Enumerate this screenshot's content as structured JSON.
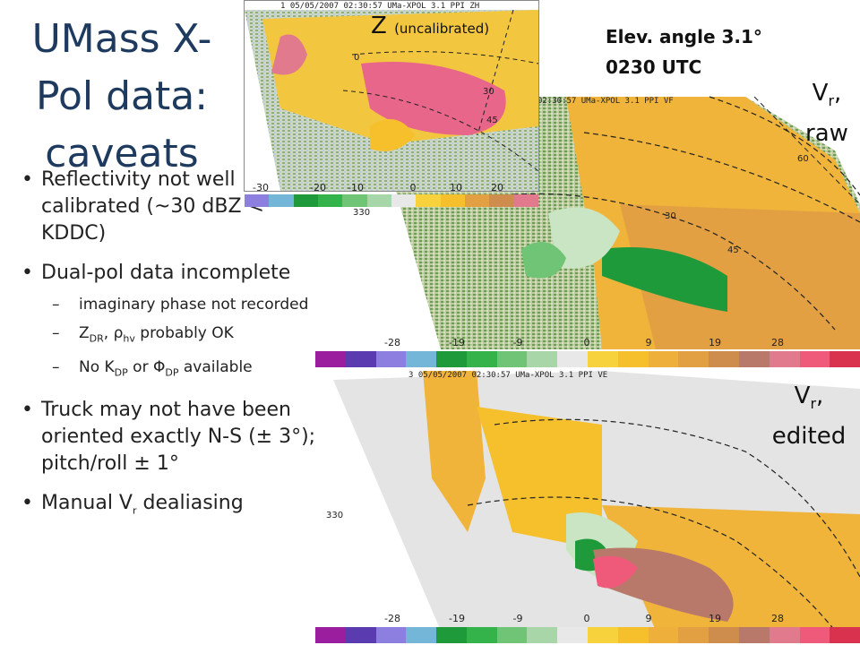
{
  "title": "UMass X-Pol data: caveats",
  "bullets": [
    {
      "text": "Reflectivity not well calibrated (~30 dBZ < KDDC)"
    },
    {
      "text": "Dual-pol data incomplete",
      "sub": [
        {
          "pre": "imaginary phase not recorded"
        },
        {
          "pre": "Z",
          "s1": "DR",
          "mid": ", ρ",
          "s2": "hv",
          "post": " probably OK"
        },
        {
          "pre": "No K",
          "s1": "DP",
          "mid": " or Φ",
          "s2": "DP",
          "post": " available"
        }
      ]
    },
    {
      "text": "Truck may not have been oriented exactly N-S (± 3°); pitch/roll ± 1°"
    },
    {
      "pre": "Manual V",
      "s1": "r",
      "post": " dealiasing"
    }
  ],
  "annotation": {
    "line1": "Elev. angle 3.1°",
    "line2": "0230 UTC"
  },
  "labels": {
    "z_main": "Z",
    "z_note": "(uncalibrated)",
    "vr": "V",
    "vr_sub": "r",
    "raw": "raw",
    "edited": "edited"
  },
  "panels": {
    "z": {
      "header": "1 05/05/2007 02:30:57 UMa-XPOL 3.1 PPI ZH",
      "ticks": [
        "-30",
        "-20",
        "-10",
        "0",
        "10",
        "20"
      ],
      "rings": [
        "0",
        "30",
        "45"
      ]
    },
    "raw": {
      "header": "02:30:57 UMa-XPOL 3.1 PPI VF",
      "ticks": [
        "-28",
        "-19",
        "-9",
        "0",
        "9",
        "19",
        "28"
      ],
      "rings": [
        "330",
        "30",
        "45",
        "60"
      ]
    },
    "edited": {
      "header": "3 05/05/2007 02:30:57 UMa-XPOL 3.1 PPI VE",
      "ticks": [
        "-28",
        "-19",
        "-9",
        "0",
        "9",
        "19",
        "28"
      ],
      "rings": [
        "330"
      ]
    }
  },
  "colors": {
    "velocity_scale": [
      "#9b1e9e",
      "#5b3bb0",
      "#8c7fe0",
      "#74b6d8",
      "#1f9a3a",
      "#33b34a",
      "#6fc475",
      "#a8d6a8",
      "#e8e8e8",
      "#f7d23c",
      "#f5c02c",
      "#eeb03a",
      "#e2a043",
      "#cf8d4d",
      "#b8796a",
      "#e07a8c",
      "#ef5a7a",
      "#d8324f"
    ],
    "reflectivity_scale": [
      "#8c7fe0",
      "#74b6d8",
      "#1f9a3a",
      "#33b34a",
      "#6fc475",
      "#a8d6a8",
      "#e8e8e8",
      "#f7d23c",
      "#f5c02c",
      "#e2a043",
      "#cf8d4d",
      "#e07a8c"
    ]
  }
}
